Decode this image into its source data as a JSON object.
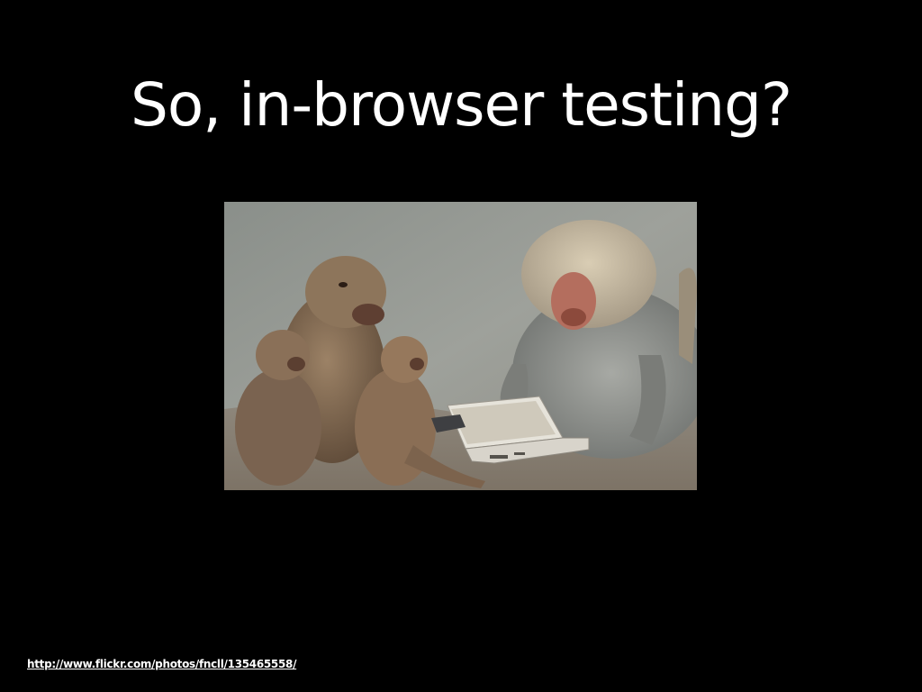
{
  "slide": {
    "title": "So, in-browser testing?",
    "credit_url": "http://www.flickr.com/photos/fncll/135465558/"
  },
  "photo": {
    "subject": "baboons-gathered-around-laptop"
  },
  "colors": {
    "background": "#000000",
    "text": "#ffffff"
  }
}
